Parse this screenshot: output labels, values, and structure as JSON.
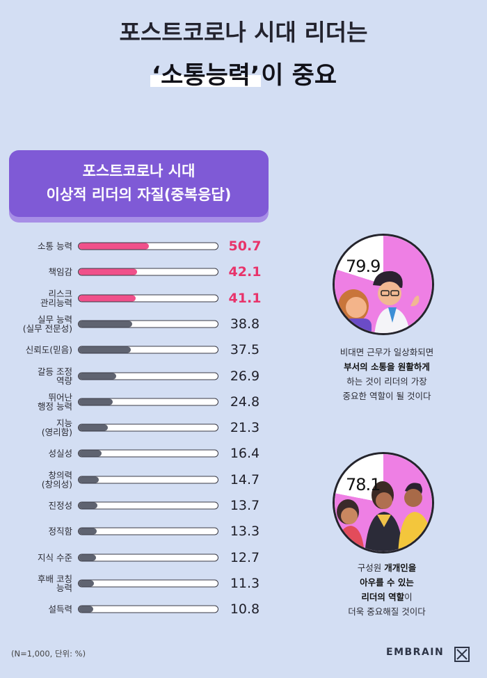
{
  "title": {
    "line1": "포스트코로나 시대 리더는",
    "line2_highlight": "‘소통능력’",
    "line2_rest": "이 중요"
  },
  "section": {
    "line1": "포스트코로나 시대",
    "line2": "이상적 리더의 자질(중복응답)"
  },
  "chart_data": {
    "type": "bar",
    "orientation": "horizontal",
    "categories": [
      "소통 능력",
      "책임감",
      "리스크 관리능력",
      "실무 능력 (실무 전문성)",
      "신뢰도(믿음)",
      "갈등 조정 역량",
      "뛰어난 행정 능력",
      "지능 (영리함)",
      "성실성",
      "창의력 (창의성)",
      "진정성",
      "정직함",
      "지식 수준",
      "후배 코칭 능력",
      "설득력"
    ],
    "label_lines": [
      [
        "소통 능력"
      ],
      [
        "책임감"
      ],
      [
        "리스크",
        "관리능력"
      ],
      [
        "실무 능력",
        "(실무 전문성)"
      ],
      [
        "신뢰도(믿음)"
      ],
      [
        "갈등 조정",
        "역량"
      ],
      [
        "뛰어난",
        "행정 능력"
      ],
      [
        "지능",
        "(영리함)"
      ],
      [
        "성실성"
      ],
      [
        "창의력",
        "(창의성)"
      ],
      [
        "진정성"
      ],
      [
        "정직함"
      ],
      [
        "지식 수준"
      ],
      [
        "후배 코칭",
        "능력"
      ],
      [
        "설득력"
      ]
    ],
    "values": [
      50.7,
      42.1,
      41.1,
      38.8,
      37.5,
      26.9,
      24.8,
      21.3,
      16.4,
      14.7,
      13.7,
      13.3,
      12.7,
      11.3,
      10.8
    ],
    "highlight_top": 3,
    "xlim": [
      0,
      100
    ],
    "unit": "%",
    "colors": {
      "highlight": "#f0508a",
      "normal": "#5f6370",
      "highlight_text": "#e8336a"
    }
  },
  "stats": [
    {
      "value": 79.9,
      "value_label": "79.9",
      "text_lines": [
        [
          {
            "t": "비대면 근무가 일상화되면",
            "b": false
          }
        ],
        [
          {
            "t": "부서의 소통을 원활하게",
            "b": true
          }
        ],
        [
          {
            "t": "하는 것이 리더의 가장",
            "b": false
          }
        ],
        [
          {
            "t": "중요한 역할이 될 것이다",
            "b": false
          }
        ]
      ]
    },
    {
      "value": 78.1,
      "value_label": "78.1",
      "text_lines": [
        [
          {
            "t": "구성원 ",
            "b": false
          },
          {
            "t": "개개인을",
            "b": true
          }
        ],
        [
          {
            "t": "아우를 수 있는",
            "b": true
          }
        ],
        [
          {
            "t": "리더의 역할",
            "b": true
          },
          {
            "t": "이",
            "b": false
          }
        ],
        [
          {
            "t": "더욱 중요해질 것이다",
            "b": false
          }
        ]
      ]
    }
  ],
  "colors": {
    "background": "#d3def3",
    "accent": "#7f5ad6",
    "pie": "#ee7fe4"
  },
  "footnote": "(N=1,000, 단위: %)",
  "brand": "EMBRAIN"
}
